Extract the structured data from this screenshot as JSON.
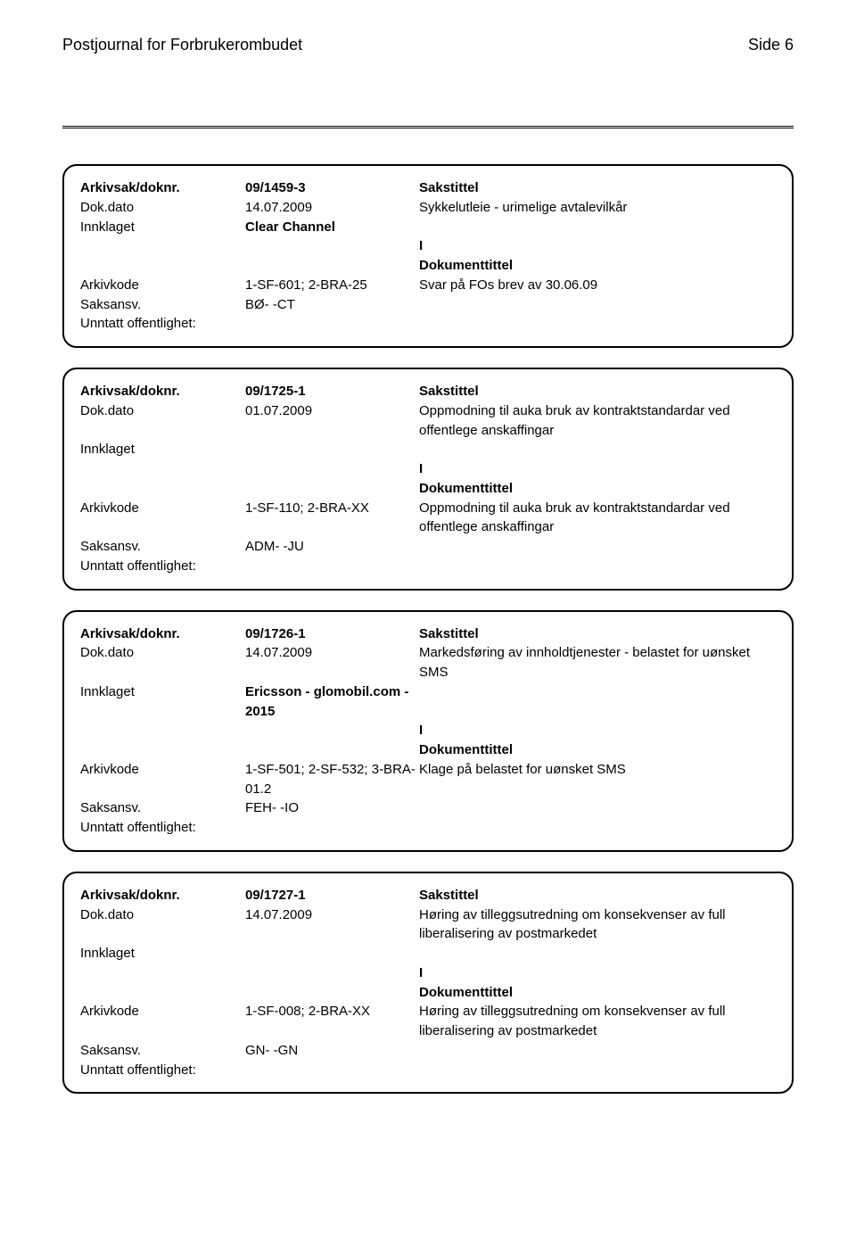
{
  "header": {
    "title": "Postjournal for Forbrukerombudet",
    "page": "Side 6"
  },
  "entries": [
    {
      "arkivsak_label": "Arkivsak/doknr.",
      "arkivsak_value": "09/1459-3",
      "sakstittel_label": "Sakstittel",
      "dokdato_label": "Dok.dato",
      "dokdato_value": "14.07.2009",
      "sakstittel_text": "Sykkelutleie - urimelige avtalevilkår",
      "innklaget_label": "Innklaget",
      "innklaget_value": "Clear Channel",
      "io_value": "I",
      "doktittel_label": "Dokumenttittel",
      "arkivkode_label": "Arkivkode",
      "arkivkode_value": "1-SF-601; 2-BRA-25",
      "doktittel_text": "Svar på FOs brev av 30.06.09",
      "saksansv_label": "Saksansv.",
      "saksansv_value": "BØ- -CT",
      "unntatt_label": "Unntatt offentlighet:"
    },
    {
      "arkivsak_label": "Arkivsak/doknr.",
      "arkivsak_value": "09/1725-1",
      "sakstittel_label": "Sakstittel",
      "dokdato_label": "Dok.dato",
      "dokdato_value": "01.07.2009",
      "sakstittel_text": "Oppmodning til auka bruk av kontraktstandardar ved offentlege anskaffingar",
      "innklaget_label": "Innklaget",
      "innklaget_value": "",
      "io_value": "I",
      "doktittel_label": "Dokumenttittel",
      "arkivkode_label": "Arkivkode",
      "arkivkode_value": "1-SF-110; 2-BRA-XX",
      "doktittel_text": "Oppmodning til auka bruk av kontraktstandardar ved offentlege anskaffingar",
      "saksansv_label": "Saksansv.",
      "saksansv_value": "ADM- -JU",
      "unntatt_label": "Unntatt offentlighet:"
    },
    {
      "arkivsak_label": "Arkivsak/doknr.",
      "arkivsak_value": "09/1726-1",
      "sakstittel_label": "Sakstittel",
      "dokdato_label": "Dok.dato",
      "dokdato_value": "14.07.2009",
      "sakstittel_text": "Markedsføring av innholdtjenester - belastet for uønsket SMS",
      "innklaget_label": "Innklaget",
      "innklaget_value": "Ericsson - glomobil.com - 2015",
      "io_value": "I",
      "doktittel_label": "Dokumenttittel",
      "arkivkode_label": "Arkivkode",
      "arkivkode_value": "1-SF-501; 2-SF-532; 3-BRA-01.2",
      "doktittel_text": "Klage på belastet for uønsket SMS",
      "saksansv_label": "Saksansv.",
      "saksansv_value": "FEH- -IO",
      "unntatt_label": "Unntatt offentlighet:"
    },
    {
      "arkivsak_label": "Arkivsak/doknr.",
      "arkivsak_value": "09/1727-1",
      "sakstittel_label": "Sakstittel",
      "dokdato_label": "Dok.dato",
      "dokdato_value": "14.07.2009",
      "sakstittel_text": "Høring av tilleggsutredning om konsekvenser av full liberalisering av postmarkedet",
      "innklaget_label": "Innklaget",
      "innklaget_value": "",
      "io_value": "I",
      "doktittel_label": "Dokumenttittel",
      "arkivkode_label": "Arkivkode",
      "arkivkode_value": "1-SF-008; 2-BRA-XX",
      "doktittel_text": "Høring av tilleggsutredning om konsekvenser av full liberalisering av postmarkedet",
      "saksansv_label": "Saksansv.",
      "saksansv_value": "GN- -GN",
      "unntatt_label": "Unntatt offentlighet:"
    }
  ]
}
